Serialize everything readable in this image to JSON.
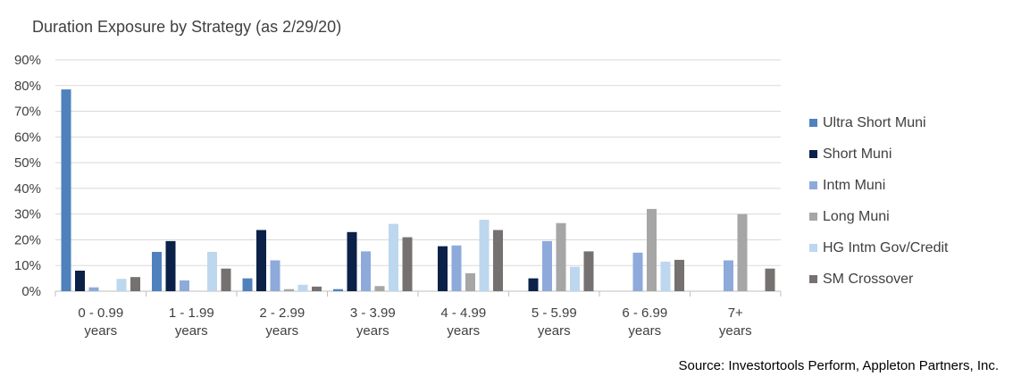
{
  "title": "Duration Exposure by Strategy (as 2/29/20)",
  "source": "Source: Investortools Perform, Appleton Partners, Inc.",
  "chart_data": {
    "type": "bar",
    "title": "Duration Exposure by Strategy (as 2/29/20)",
    "xlabel": "",
    "ylabel": "",
    "ylim": [
      0,
      0.9
    ],
    "yticks": [
      0,
      0.1,
      0.2,
      0.3,
      0.4,
      0.5,
      0.6,
      0.7,
      0.8,
      0.9
    ],
    "ytick_labels": [
      "0%",
      "10%",
      "20%",
      "30%",
      "40%",
      "50%",
      "60%",
      "70%",
      "80%",
      "90%"
    ],
    "grid": true,
    "legend_position": "right",
    "categories": [
      [
        "0 - 0.99",
        "years"
      ],
      [
        "1 - 1.99",
        "years"
      ],
      [
        "2 - 2.99",
        "years"
      ],
      [
        "3 - 3.99",
        "years"
      ],
      [
        "4 - 4.99",
        "years"
      ],
      [
        "5 - 5.99",
        "years"
      ],
      [
        "6 - 6.99",
        "years"
      ],
      [
        "7+",
        "years"
      ]
    ],
    "series": [
      {
        "name": "Ultra Short Muni",
        "color": "#4F81BD",
        "values": [
          0.785,
          0.153,
          0.05,
          0.008,
          null,
          null,
          null,
          null
        ]
      },
      {
        "name": "Short Muni",
        "color": "#0B2147",
        "values": [
          0.08,
          0.195,
          0.238,
          0.23,
          0.175,
          0.05,
          null,
          null
        ]
      },
      {
        "name": "Intm Muni",
        "color": "#8EAADB",
        "values": [
          0.015,
          0.042,
          0.12,
          0.155,
          0.178,
          0.195,
          0.15,
          0.12
        ]
      },
      {
        "name": "Long Muni",
        "color": "#A6A6A6",
        "values": [
          null,
          null,
          0.008,
          0.02,
          0.07,
          0.265,
          0.32,
          0.3
        ]
      },
      {
        "name": "HG Intm Gov/Credit",
        "color": "#BDD7EE",
        "values": [
          0.048,
          0.153,
          0.025,
          0.262,
          0.278,
          0.095,
          0.115,
          null
        ]
      },
      {
        "name": "SM Crossover",
        "color": "#767171",
        "values": [
          0.055,
          0.088,
          0.018,
          0.21,
          0.238,
          0.155,
          0.122,
          0.088
        ]
      }
    ]
  }
}
